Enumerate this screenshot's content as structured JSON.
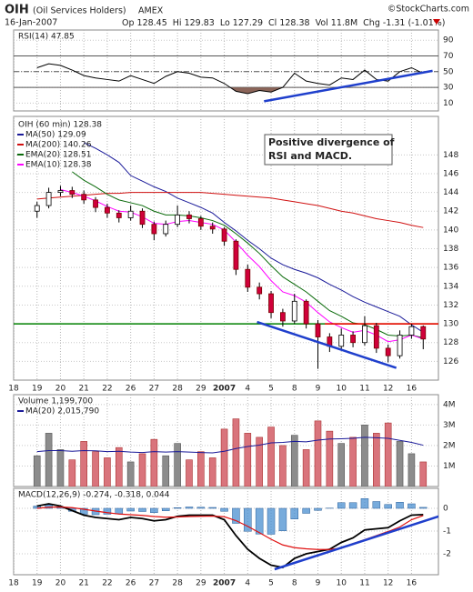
{
  "header": {
    "symbol": "OIH",
    "name": "(Oil Services Holders)",
    "exchange": "AMEX",
    "credit": "©StockCharts.com",
    "date": "16-Jan-2007",
    "stats": [
      "Op 128.45",
      "Hi 129.83",
      "Lo 127.29",
      "Cl 128.38",
      "Vol 11.8M",
      "Chg -1.31 (-1.01%)"
    ]
  },
  "chart_data": [
    {
      "type": "line",
      "title": "RSI(14) 47.85",
      "color": "#000000",
      "x": [
        2,
        3,
        4,
        5,
        6,
        7,
        8,
        9,
        10,
        11,
        12,
        13,
        14,
        15,
        16,
        17,
        18,
        19,
        20,
        21,
        22,
        23,
        24,
        25,
        26,
        27,
        28,
        29,
        30,
        31,
        32,
        33,
        34,
        35
      ],
      "values": [
        55,
        60,
        58,
        52,
        45,
        42,
        40,
        38,
        45,
        40,
        35,
        44,
        50,
        48,
        43,
        42,
        35,
        25,
        22,
        26,
        24,
        30,
        48,
        38,
        35,
        33,
        42,
        40,
        52,
        40,
        38,
        50,
        55,
        47.85
      ],
      "xlim": [
        0,
        36.3
      ],
      "ylim": [
        0,
        103
      ],
      "yticks": [
        10,
        30,
        50,
        70,
        90
      ],
      "ref_lines": [
        70,
        30
      ],
      "mid_line": 50,
      "fill_below": 30,
      "fill_color": "#8b6559",
      "trendline": {
        "x": [
          21.4,
          35.8
        ],
        "y": [
          12.3,
          51.1
        ],
        "color": "#1f3fcc"
      }
    },
    {
      "type": "candlestick",
      "title": "OIH (60 min) 128.38",
      "up_color": "#ffffff",
      "down_color": "#d0003a",
      "x": [
        2,
        3,
        4,
        5,
        6,
        7,
        8,
        9,
        10,
        11,
        12,
        13,
        14,
        15,
        16,
        17,
        18,
        19,
        20,
        21,
        22,
        23,
        24,
        25,
        26,
        27,
        28,
        29,
        30,
        31,
        32,
        33,
        34,
        35
      ],
      "open": [
        142.0,
        142.6,
        144.0,
        144.2,
        143.8,
        143.2,
        142.4,
        141.8,
        141.3,
        142.0,
        140.6,
        139.6,
        140.6,
        141.6,
        141.2,
        140.4,
        140.1,
        138.8,
        135.8,
        133.9,
        133.2,
        131.2,
        130.3,
        132.4,
        130.0,
        128.6,
        127.6,
        128.8,
        128.0,
        129.8,
        127.4,
        126.6,
        128.8,
        129.7
      ],
      "high": [
        143.0,
        144.5,
        144.7,
        144.6,
        144.2,
        143.5,
        142.8,
        142.1,
        142.6,
        142.3,
        140.9,
        141.0,
        142.6,
        142.0,
        141.5,
        140.8,
        140.3,
        139.0,
        136.3,
        134.4,
        133.5,
        131.6,
        133.2,
        132.6,
        130.4,
        129.0,
        129.5,
        129.2,
        130.8,
        130.1,
        127.8,
        129.3,
        130.0,
        129.83
      ],
      "low": [
        141.3,
        142.3,
        143.6,
        143.4,
        142.8,
        141.9,
        141.3,
        140.8,
        141.0,
        140.2,
        138.9,
        139.3,
        140.3,
        140.7,
        140.0,
        139.6,
        138.3,
        135.2,
        133.4,
        132.6,
        130.6,
        129.7,
        130.0,
        129.5,
        125.2,
        127.0,
        127.2,
        127.5,
        127.7,
        126.9,
        125.9,
        126.3,
        128.4,
        127.29
      ],
      "close": [
        142.6,
        144.0,
        144.2,
        143.8,
        143.2,
        142.4,
        141.8,
        141.3,
        142.0,
        140.6,
        139.6,
        140.6,
        141.6,
        141.2,
        140.4,
        140.1,
        138.8,
        135.8,
        133.9,
        133.2,
        131.2,
        130.3,
        132.4,
        130.0,
        128.6,
        127.6,
        128.8,
        128.0,
        129.8,
        127.4,
        126.6,
        128.8,
        129.7,
        128.38
      ],
      "series": [
        {
          "name": "MA(50) 129.09",
          "color": "#1a1a99",
          "values": [
            null,
            null,
            null,
            null,
            149.3,
            148.7,
            148.0,
            147.2,
            145.8,
            145.2,
            144.6,
            144.1,
            143.4,
            142.9,
            142.4,
            141.8,
            140.8,
            139.9,
            138.9,
            138.0,
            137.0,
            136.3,
            135.8,
            135.4,
            134.9,
            134.2,
            133.6,
            132.9,
            132.3,
            131.8,
            131.3,
            130.8,
            129.9,
            129.09
          ]
        },
        {
          "name": "MA(200) 140.26",
          "color": "#d01010",
          "values": [
            143.3,
            143.4,
            143.5,
            143.6,
            143.7,
            143.8,
            143.9,
            143.9,
            144.0,
            144.0,
            144.0,
            144.0,
            144.0,
            144.0,
            144.0,
            143.9,
            143.8,
            143.7,
            143.6,
            143.5,
            143.4,
            143.2,
            143.0,
            142.8,
            142.6,
            142.3,
            142.0,
            141.8,
            141.5,
            141.2,
            141.0,
            140.8,
            140.5,
            140.26
          ]
        },
        {
          "name": "EMA(20) 128.51",
          "color": "#0a6a0a",
          "values": [
            null,
            null,
            null,
            146.2,
            145.3,
            144.6,
            143.8,
            143.2,
            142.9,
            142.6,
            142.0,
            141.6,
            141.6,
            141.5,
            141.3,
            141.0,
            140.5,
            139.6,
            138.6,
            137.5,
            136.2,
            135.0,
            134.2,
            133.4,
            132.4,
            131.4,
            130.8,
            130.1,
            129.9,
            129.4,
            128.8,
            128.7,
            128.8,
            128.51
          ]
        },
        {
          "name": "EMA(10) 128.38",
          "color": "#ff00ff",
          "values": [
            null,
            null,
            144.3,
            144.0,
            143.6,
            143.1,
            142.5,
            142.0,
            141.9,
            141.4,
            140.7,
            140.6,
            140.9,
            141.0,
            140.8,
            140.6,
            140.0,
            138.7,
            137.3,
            136.1,
            134.6,
            133.4,
            133.0,
            132.3,
            131.2,
            130.2,
            129.6,
            129.1,
            129.3,
            128.8,
            128.1,
            128.3,
            128.8,
            128.38
          ]
        }
      ],
      "xlim": [
        0,
        36.3
      ],
      "ylim": [
        124,
        152.1
      ],
      "yticks": [
        126,
        128,
        130,
        132,
        134,
        136,
        138,
        140,
        142,
        144,
        146,
        148
      ],
      "xticks": [
        {
          "value": 0,
          "label": "18"
        },
        {
          "value": 2,
          "label": "19"
        },
        {
          "value": 4,
          "label": "20"
        },
        {
          "value": 6,
          "label": "21"
        },
        {
          "value": 8,
          "label": "22"
        },
        {
          "value": 10,
          "label": "26"
        },
        {
          "value": 12,
          "label": "27"
        },
        {
          "value": 14,
          "label": "28"
        },
        {
          "value": 16,
          "label": "29"
        },
        {
          "value": 18,
          "label": "2007"
        },
        {
          "value": 20,
          "label": "4"
        },
        {
          "value": 22,
          "label": "5"
        },
        {
          "value": 24,
          "label": "8"
        },
        {
          "value": 26,
          "label": "9"
        },
        {
          "value": 28,
          "label": "10"
        },
        {
          "value": 30,
          "label": "11"
        },
        {
          "value": 32,
          "label": "12"
        },
        {
          "value": 34,
          "label": "16"
        }
      ],
      "hlines": [
        {
          "value": 130,
          "color": "#008000"
        },
        {
          "value": 130,
          "color": "#ff0000",
          "x": [
            26.6,
            36.3
          ]
        }
      ],
      "trendline": {
        "x": [
          20.8,
          32.7
        ],
        "y": [
          130.2,
          125.3
        ],
        "color": "#1f3fcc"
      },
      "annotation": {
        "lines": [
          "Positive divergence of",
          "RSI and MACD."
        ],
        "color": "#1a2fc8"
      }
    },
    {
      "type": "bar",
      "title": "Volume 1,199,700",
      "up_color": "#8c8c8c",
      "down_color": "#d9747c",
      "x": [
        2,
        3,
        4,
        5,
        6,
        7,
        8,
        9,
        10,
        11,
        12,
        13,
        14,
        15,
        16,
        17,
        18,
        19,
        20,
        21,
        22,
        23,
        24,
        25,
        26,
        27,
        28,
        29,
        30,
        31,
        32,
        33,
        34,
        35
      ],
      "values": [
        1500000,
        2600000,
        1800000,
        1300000,
        2200000,
        1700000,
        1400000,
        1900000,
        1200000,
        1600000,
        2300000,
        1500000,
        2100000,
        1300000,
        1700000,
        1400000,
        2800000,
        3300000,
        2600000,
        2400000,
        2900000,
        2000000,
        2500000,
        1800000,
        3200000,
        2700000,
        2100000,
        2400000,
        3000000,
        2600000,
        3100000,
        2200000,
        1600000,
        1199700
      ],
      "series": [
        {
          "name": "MA(20) 2,015,790",
          "color": "#1a1a99",
          "values": [
            1700000,
            1750000,
            1750000,
            1720000,
            1750000,
            1740000,
            1700000,
            1720000,
            1680000,
            1660000,
            1700000,
            1680000,
            1700000,
            1680000,
            1660000,
            1640000,
            1720000,
            1850000,
            1950000,
            2020000,
            2130000,
            2150000,
            2200000,
            2180000,
            2260000,
            2320000,
            2330000,
            2350000,
            2400000,
            2380000,
            2350000,
            2250000,
            2150000,
            2015790
          ]
        }
      ],
      "xlim": [
        0,
        36.3
      ],
      "ylim": [
        0,
        4480000
      ],
      "yticks": [
        {
          "value": 1000000,
          "label": "1M"
        },
        {
          "value": 2000000,
          "label": "2M"
        },
        {
          "value": 3000000,
          "label": "3M"
        },
        {
          "value": 4000000,
          "label": "4M"
        }
      ]
    },
    {
      "type": "macd",
      "title": "MACD(12,26,9) -0.274, -0.318, 0.044",
      "x": [
        2,
        3,
        4,
        5,
        6,
        7,
        8,
        9,
        10,
        11,
        12,
        13,
        14,
        15,
        16,
        17,
        18,
        19,
        20,
        21,
        22,
        23,
        24,
        25,
        26,
        27,
        28,
        29,
        30,
        31,
        32,
        33,
        34,
        35
      ],
      "series": [
        {
          "color": "#000000",
          "values": [
            0.1,
            0.2,
            0.1,
            -0.1,
            -0.3,
            -0.4,
            -0.45,
            -0.5,
            -0.4,
            -0.45,
            -0.55,
            -0.5,
            -0.35,
            -0.3,
            -0.3,
            -0.3,
            -0.5,
            -1.2,
            -1.8,
            -2.2,
            -2.5,
            -2.6,
            -2.2,
            -2.0,
            -1.9,
            -1.8,
            -1.5,
            -1.3,
            -0.95,
            -0.9,
            -0.85,
            -0.55,
            -0.3,
            -0.274
          ]
        },
        {
          "color": "#e01010",
          "values": [
            0.0,
            0.05,
            0.06,
            0.03,
            -0.04,
            -0.12,
            -0.19,
            -0.25,
            -0.28,
            -0.31,
            -0.36,
            -0.39,
            -0.38,
            -0.36,
            -0.35,
            -0.34,
            -0.37,
            -0.54,
            -0.79,
            -1.07,
            -1.36,
            -1.61,
            -1.73,
            -1.78,
            -1.81,
            -1.81,
            -1.75,
            -1.55,
            -1.38,
            -1.2,
            -1.02,
            -0.82,
            -0.5,
            -0.318
          ]
        }
      ],
      "histogram": {
        "color": "#4a8fd0",
        "values": [
          0.1,
          0.15,
          0.04,
          -0.13,
          -0.26,
          -0.28,
          -0.26,
          -0.25,
          -0.12,
          -0.14,
          -0.19,
          -0.11,
          0.03,
          0.06,
          0.05,
          0.04,
          -0.13,
          -0.66,
          -1.01,
          -1.13,
          -1.14,
          -0.99,
          -0.47,
          -0.22,
          -0.09,
          0.01,
          0.25,
          0.25,
          0.43,
          0.3,
          0.17,
          0.27,
          0.2,
          0.044
        ]
      },
      "xlim": [
        0,
        36.3
      ],
      "ylim": [
        -2.92,
        0.88
      ],
      "yticks": [
        0,
        -1,
        -2
      ],
      "xticks": [
        {
          "value": 0,
          "label": "18"
        },
        {
          "value": 2,
          "label": "19"
        },
        {
          "value": 4,
          "label": "20"
        },
        {
          "value": 6,
          "label": "21"
        },
        {
          "value": 8,
          "label": "22"
        },
        {
          "value": 10,
          "label": "26"
        },
        {
          "value": 12,
          "label": "27"
        },
        {
          "value": 14,
          "label": "28"
        },
        {
          "value": 16,
          "label": "29"
        },
        {
          "value": 18,
          "label": "2007"
        },
        {
          "value": 20,
          "label": "4"
        },
        {
          "value": 22,
          "label": "5"
        },
        {
          "value": 24,
          "label": "8"
        },
        {
          "value": 26,
          "label": "9"
        },
        {
          "value": 28,
          "label": "10"
        },
        {
          "value": 30,
          "label": "11"
        },
        {
          "value": 32,
          "label": "12"
        },
        {
          "value": 34,
          "label": "16"
        }
      ],
      "trendline": {
        "x": [
          22.3,
          37.5
        ],
        "y": [
          -2.68,
          -0.16
        ],
        "color": "#1f3fcc"
      }
    }
  ]
}
